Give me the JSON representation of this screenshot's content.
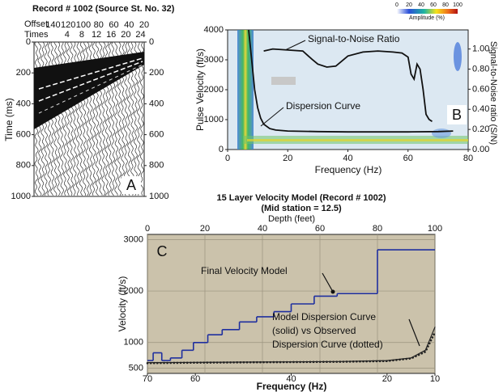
{
  "chart_data": [
    {
      "type": "wiggle",
      "title": "Record # 1002 (Source St. No. 32)",
      "x_label": "Offset",
      "x2_label": "Times",
      "y_label": "Time (ms)",
      "panel_label": "A",
      "xlim": [
        165,
        20
      ],
      "xticks": [
        140,
        120,
        100,
        80,
        60,
        40,
        20
      ],
      "x2lim": [
        -5,
        25
      ],
      "x2ticks": [
        4,
        8,
        12,
        16,
        20,
        24
      ],
      "ylim": [
        0,
        1000
      ],
      "yticks": [
        0,
        200,
        400,
        600,
        800,
        1000
      ]
    },
    {
      "type": "line",
      "x_label": "Frequency (Hz)",
      "y_label": "Pulse Velocity (ft/s)",
      "y2_label": "Signal-to-Noise ratio (S/N)",
      "panel_label": "B",
      "xlim": [
        0,
        80
      ],
      "xticks": [
        0,
        20,
        40,
        60,
        80
      ],
      "ylim": [
        0,
        4000
      ],
      "yticks": [
        0,
        1000,
        2000,
        3000,
        4000
      ],
      "y2lim": [
        0,
        1.19
      ],
      "y2ticks": [
        {
          "value": 0,
          "label": "0.00"
        },
        {
          "value": 0.2,
          "label": "0.20"
        },
        {
          "value": 0.4,
          "label": "0.40"
        },
        {
          "value": 0.6,
          "label": "0.60"
        },
        {
          "value": 0.8,
          "label": "0.80"
        },
        {
          "value": 1,
          "label": "1.00"
        }
      ],
      "colorbar": {
        "label": "Amplitude (%)",
        "ticks": [
          0,
          20,
          40,
          60,
          80,
          100
        ]
      },
      "series": [
        {
          "name": "Signal-to-Noise Ratio",
          "color": "#111111",
          "axis": "y2",
          "x": [
            12,
            15,
            20,
            25,
            28,
            30,
            33,
            36,
            40,
            45,
            50,
            55,
            58,
            60,
            61,
            62,
            63,
            64,
            65,
            66,
            67,
            68
          ],
          "values": [
            0.98,
            1.0,
            0.99,
            0.98,
            0.9,
            0.85,
            0.82,
            0.83,
            0.93,
            0.97,
            0.98,
            0.97,
            0.96,
            0.92,
            0.75,
            0.7,
            0.85,
            0.8,
            0.6,
            0.35,
            0.3,
            0.28
          ]
        },
        {
          "name": "Dispersion Curve",
          "color": "#111111",
          "x": [
            7,
            8,
            9,
            10,
            11,
            12,
            14,
            16,
            20,
            30,
            40,
            50,
            60,
            70,
            75
          ],
          "values": [
            4000,
            3000,
            2000,
            1400,
            1050,
            850,
            700,
            650,
            620,
            600,
            590,
            590,
            590,
            600,
            620
          ]
        }
      ]
    },
    {
      "type": "step",
      "title": "15 Layer Velocity Model (Record # 1002)",
      "subtitle": "(Mid station = 12.5)",
      "x_label": "Depth (feet)",
      "x2_label": "Frequency (Hz)",
      "y_label": "Velocity (ft/s)",
      "panel_label": "C",
      "xlim": [
        0,
        100
      ],
      "xticks": [
        0,
        20,
        40,
        60,
        80,
        100
      ],
      "x2lim": [
        70,
        10
      ],
      "x2ticks": [
        70,
        60,
        40,
        20,
        10
      ],
      "ylim": [
        400,
        3100
      ],
      "yticks": [
        500,
        1000,
        2000,
        3000
      ],
      "grid": true,
      "velocity_model": {
        "name": "Final Velocity Model",
        "color": "#1f2f9f",
        "bins": [
          0,
          2,
          5,
          8,
          12,
          16,
          21,
          26,
          32,
          38,
          44,
          50,
          58,
          66,
          80,
          100
        ],
        "values": [
          650,
          800,
          650,
          700,
          850,
          1000,
          1150,
          1250,
          1400,
          1500,
          1600,
          1750,
          1900,
          1950,
          2800
        ]
      },
      "dispersion_label": [
        "Model Dispersion Curve",
        "(solid) vs Observed",
        "Dispersion Curve (dotted)"
      ],
      "dispersion_curves": [
        {
          "color": "#222222",
          "style": "solid",
          "x": [
            70,
            60,
            50,
            40,
            30,
            20,
            15,
            12,
            10
          ],
          "values": [
            610,
            615,
            620,
            625,
            630,
            650,
            700,
            850,
            1300
          ]
        },
        {
          "color": "#222222",
          "style": "dotted",
          "x": [
            70,
            60,
            50,
            40,
            30,
            20,
            15,
            12,
            10
          ],
          "values": [
            600,
            608,
            615,
            620,
            626,
            640,
            690,
            820,
            1200
          ]
        }
      ]
    }
  ]
}
